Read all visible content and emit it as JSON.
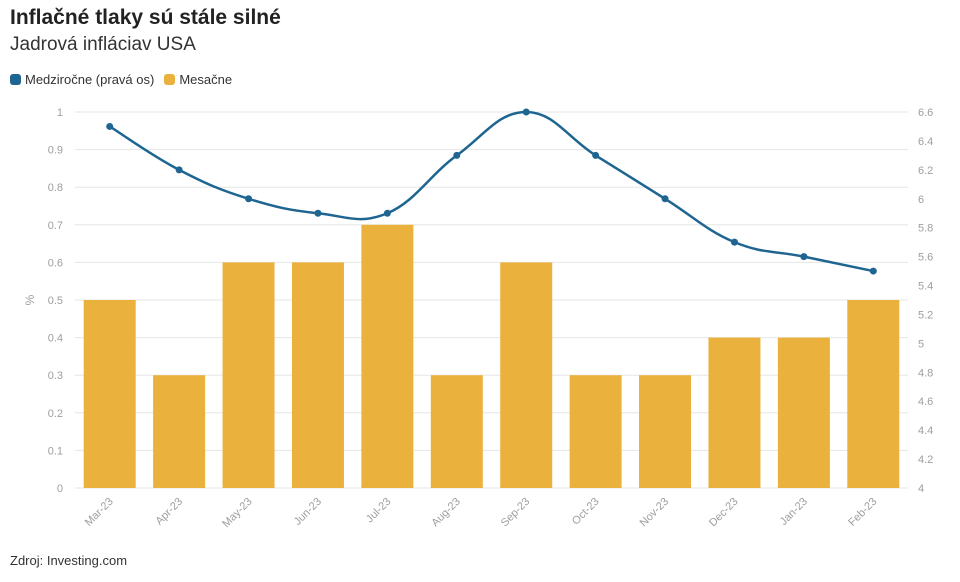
{
  "title": "Inflačné tlaky sú stále silné",
  "subtitle": "Jadrová infláciav USA",
  "source": "Zdroj: Investing.com",
  "colors": {
    "line": "#1f6591",
    "bar": "#eab13d",
    "grid": "#e6e6e6",
    "axis_text": "#9e9e9e"
  },
  "chart_data": {
    "type": "bar+line",
    "categories": [
      "Mar-23",
      "Apr-23",
      "May-23",
      "Jun-23",
      "Jul-23",
      "Aug-23",
      "Sep-23",
      "Oct-23",
      "Nov-23",
      "Dec-23",
      "Jan-23",
      "Feb-23"
    ],
    "series": [
      {
        "name": "Medziročne (pravá os)",
        "type": "line",
        "axis": "right",
        "values": [
          6.5,
          6.2,
          6.0,
          5.9,
          5.9,
          6.3,
          6.6,
          6.3,
          6.0,
          5.7,
          5.6,
          5.5
        ]
      },
      {
        "name": "Mesačne",
        "type": "bar",
        "axis": "left",
        "values": [
          0.5,
          0.3,
          0.6,
          0.6,
          0.7,
          0.3,
          0.6,
          0.3,
          0.3,
          0.4,
          0.4,
          0.5
        ]
      }
    ],
    "ylabel": "%",
    "ylim": [
      0,
      1
    ],
    "yticks": [
      "0",
      "0.1",
      "0.2",
      "0.3",
      "0.4",
      "0.5",
      "0.6",
      "0.7",
      "0.8",
      "0.9",
      "1"
    ],
    "y2lim": [
      4,
      6.6
    ],
    "y2ticks": [
      "4",
      "4.2",
      "4.4",
      "4.6",
      "4.8",
      "5",
      "5.2",
      "5.4",
      "5.6",
      "5.8",
      "6",
      "6.2",
      "6.4",
      "6.6"
    ],
    "grid": true,
    "legend_position": "top-left"
  }
}
